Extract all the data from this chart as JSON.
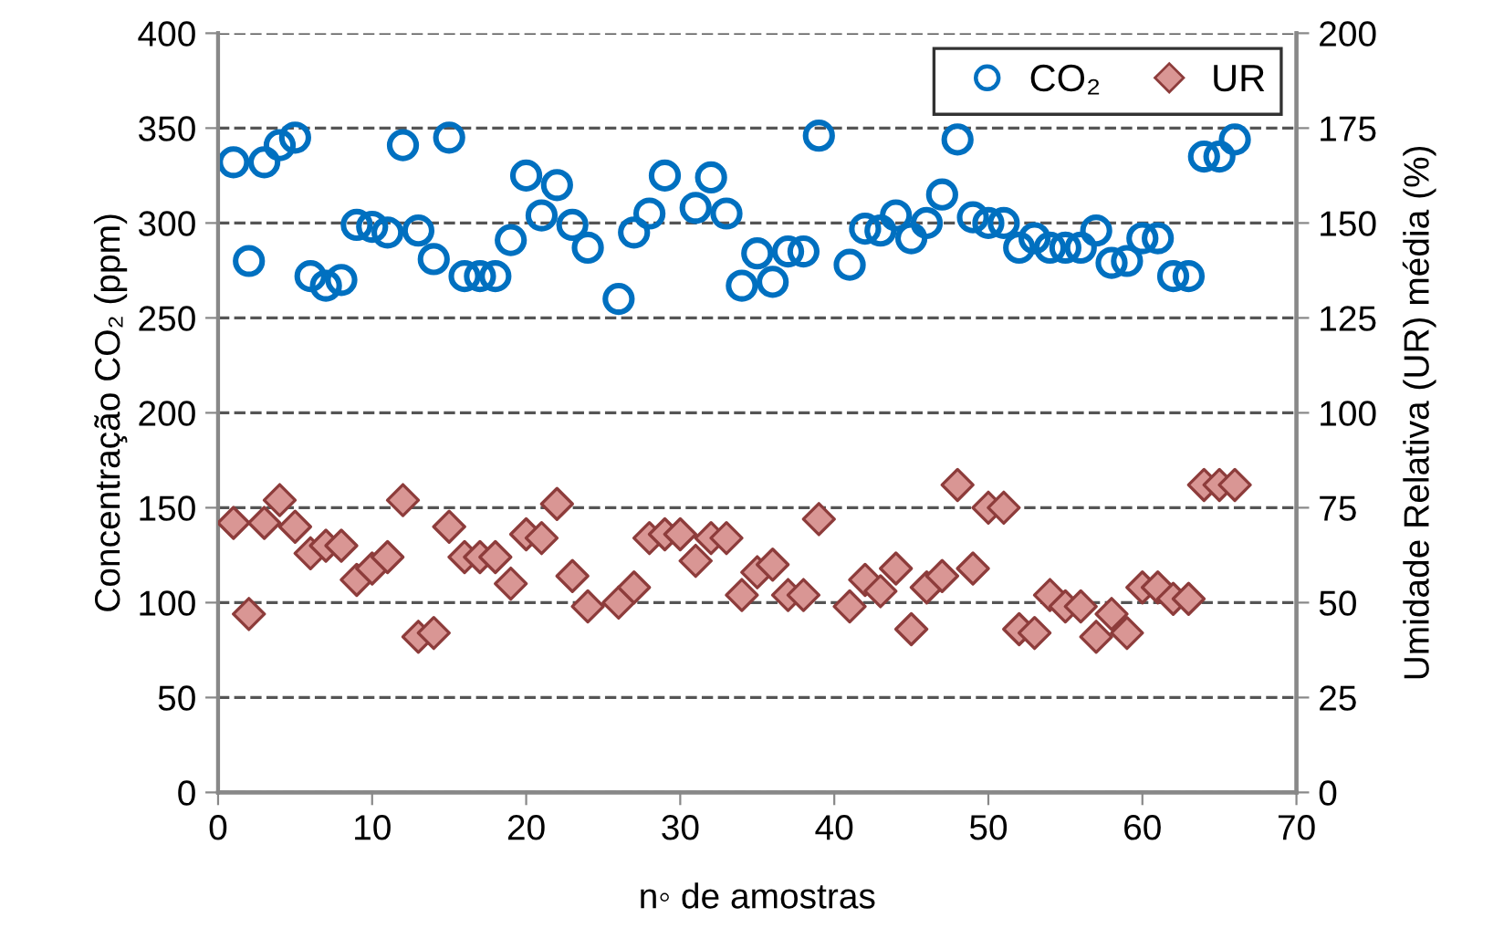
{
  "chart_data": {
    "type": "scatter",
    "xlabel": "n◦ de amostras",
    "ylabel": "Concentração CO₂ (ppm)",
    "y2label": "Umidade Relativa (UR) média (%)",
    "xlim": [
      0,
      70
    ],
    "xticks": [
      0,
      10,
      20,
      30,
      40,
      50,
      60,
      70
    ],
    "ylim": [
      0,
      400
    ],
    "yticks": [
      0,
      50,
      100,
      150,
      200,
      250,
      300,
      350,
      400
    ],
    "y2lim": [
      0,
      200
    ],
    "y2ticks": [
      0,
      25,
      50,
      75,
      100,
      125,
      150,
      175,
      200
    ],
    "grid": "y",
    "line_style": "dashed",
    "legend": "top right",
    "series": [
      {
        "name": "CO₂",
        "color": "#0070c0",
        "marker": "circle",
        "x": [
          1,
          2,
          3,
          4,
          5,
          6,
          7,
          8,
          9,
          10,
          11,
          12,
          13,
          14,
          15,
          16,
          17,
          18,
          19,
          20,
          21,
          22,
          23,
          24,
          26,
          27,
          28,
          29,
          31,
          32,
          33,
          34,
          35,
          36,
          37,
          38,
          39,
          41,
          42,
          43,
          44,
          45,
          46,
          47,
          48,
          49,
          50,
          51,
          52,
          53,
          54,
          55,
          56,
          57,
          58,
          59,
          60,
          61,
          62,
          63,
          64,
          65,
          66
        ],
        "values": [
          332,
          280,
          332,
          341,
          345,
          272,
          267,
          270,
          299,
          298,
          295,
          341,
          296,
          281,
          345,
          272,
          272,
          272,
          291,
          325,
          304,
          320,
          299,
          287,
          260,
          295,
          305,
          325,
          308,
          324,
          305,
          267,
          284,
          269,
          285,
          285,
          346,
          278,
          297,
          296,
          304,
          292,
          300,
          315,
          344,
          303,
          300,
          300,
          287,
          292,
          287,
          287,
          287,
          296,
          279,
          280,
          292,
          292,
          272,
          272,
          335,
          335,
          344
        ]
      },
      {
        "name": "UR",
        "color": "#d99694",
        "marker": "diamond",
        "axis": "y2",
        "x": [
          1,
          2,
          3,
          4,
          5,
          6,
          7,
          8,
          9,
          10,
          11,
          12,
          13,
          14,
          15,
          16,
          17,
          18,
          19,
          20,
          21,
          22,
          23,
          24,
          26,
          27,
          28,
          29,
          30,
          31,
          32,
          33,
          34,
          35,
          36,
          37,
          38,
          39,
          41,
          42,
          43,
          44,
          45,
          46,
          47,
          48,
          49,
          50,
          51,
          52,
          53,
          54,
          55,
          56,
          57,
          58,
          59,
          60,
          61,
          62,
          63,
          64,
          65,
          66
        ],
        "values": [
          71,
          47,
          71,
          77,
          70,
          63,
          65,
          65,
          56,
          59,
          62,
          77,
          41,
          42,
          70,
          62,
          62,
          62,
          55,
          68,
          67,
          76,
          57,
          49,
          50,
          54,
          67,
          68,
          68,
          61,
          67,
          67,
          52,
          58,
          60,
          52,
          52,
          72,
          49,
          56,
          53,
          59,
          43,
          54,
          57,
          81,
          59,
          75,
          75,
          43,
          42,
          52,
          49,
          49,
          41,
          47,
          42,
          54,
          54,
          51,
          51,
          81,
          81,
          81
        ]
      }
    ]
  }
}
